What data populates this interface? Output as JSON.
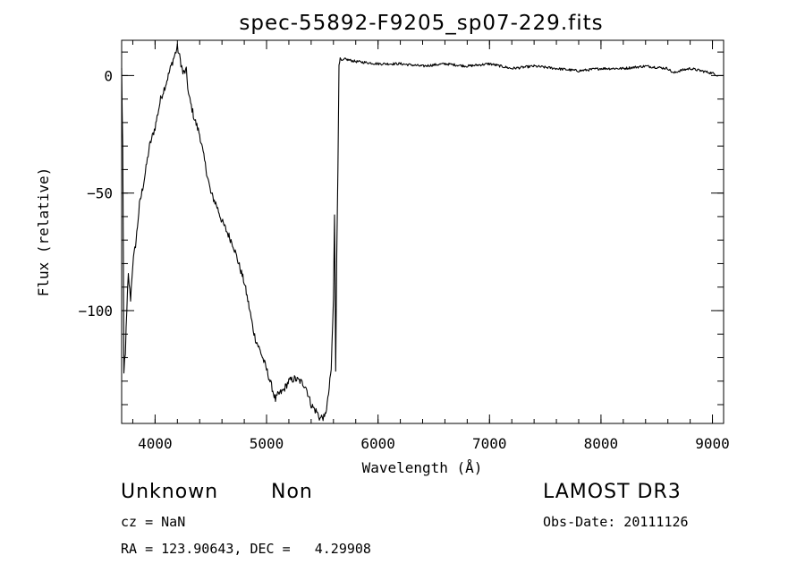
{
  "chart_data": {
    "type": "line",
    "title": "spec-55892-F9205_sp07-229.fits",
    "xlabel": "Wavelength (Å)",
    "ylabel": "Flux (relative)",
    "xlim": [
      3700,
      9100
    ],
    "ylim": [
      -148,
      15
    ],
    "xticks": [
      4000,
      5000,
      6000,
      7000,
      8000,
      9000
    ],
    "xtick_labels": [
      "4000",
      "5000",
      "6000",
      "7000",
      "8000",
      "9000"
    ],
    "yticks": [
      0,
      -50,
      -100
    ],
    "ytick_labels": [
      "0",
      "−50",
      "−100"
    ],
    "series": [
      {
        "name": "spectrum",
        "x": [
          3700,
          3710,
          3720,
          3740,
          3760,
          3780,
          3800,
          3830,
          3860,
          3900,
          3950,
          4000,
          4050,
          4100,
          4150,
          4200,
          4220,
          4250,
          4280,
          4300,
          4350,
          4400,
          4450,
          4500,
          4550,
          4600,
          4650,
          4700,
          4750,
          4800,
          4850,
          4880,
          4900,
          4950,
          5000,
          5050,
          5080,
          5100,
          5150,
          5200,
          5250,
          5300,
          5350,
          5400,
          5430,
          5450,
          5480,
          5500,
          5520,
          5550,
          5580,
          5600,
          5610,
          5620,
          5630,
          5640,
          5650,
          5660,
          5680,
          5700,
          5800,
          6000,
          6200,
          6400,
          6600,
          6800,
          7000,
          7200,
          7400,
          7600,
          7800,
          8000,
          8200,
          8400,
          8600,
          8650,
          8700,
          8800,
          9000,
          9050
        ],
        "y": [
          2,
          -30,
          -128,
          -110,
          -85,
          -95,
          -80,
          -70,
          -55,
          -45,
          -30,
          -22,
          -10,
          -3,
          5,
          12,
          8,
          1,
          2,
          -8,
          -18,
          -25,
          -38,
          -50,
          -55,
          -62,
          -67,
          -72,
          -80,
          -88,
          -100,
          -108,
          -112,
          -118,
          -125,
          -133,
          -138,
          -136,
          -134,
          -130,
          -129,
          -130,
          -132,
          -140,
          -142,
          -143,
          -146,
          -145,
          -146,
          -138,
          -125,
          -95,
          -60,
          -125,
          -75,
          -40,
          5,
          7,
          6,
          7,
          6,
          5,
          5,
          4,
          5,
          4,
          5,
          3,
          4,
          3,
          2,
          3,
          3,
          4,
          3,
          1,
          2,
          3,
          1,
          0
        ]
      }
    ]
  },
  "annotations": {
    "object_name": "Unknown",
    "object_type": "Non",
    "survey": "LAMOST DR3",
    "cz": "cz = NaN",
    "obs_date": "Obs-Date: 20111126",
    "radec": "RA = 123.90643, DEC =   4.29908"
  }
}
